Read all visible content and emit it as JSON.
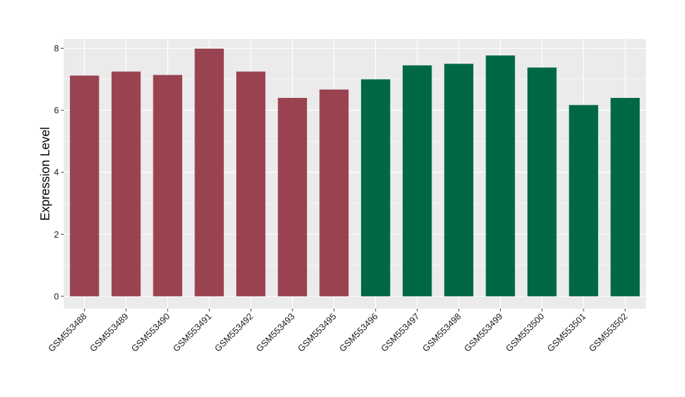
{
  "chart_data": {
    "type": "bar",
    "title": "",
    "xlabel": "",
    "ylabel": "Expression Level",
    "categories": [
      "GSM553488",
      "GSM553489",
      "GSM553490",
      "GSM553491",
      "GSM553492",
      "GSM553493",
      "GSM553495",
      "GSM553496",
      "GSM553497",
      "GSM553498",
      "GSM553499",
      "GSM553500",
      "GSM553501",
      "GSM553502"
    ],
    "values": [
      7.12,
      7.25,
      7.14,
      7.99,
      7.25,
      6.4,
      6.67,
      7.0,
      7.45,
      7.5,
      7.77,
      7.38,
      6.17,
      6.4
    ],
    "groups": [
      0,
      0,
      0,
      0,
      0,
      0,
      0,
      1,
      1,
      1,
      1,
      1,
      1,
      1
    ],
    "group_colors": [
      "#9a4350",
      "#006846"
    ],
    "ylim": [
      -0.4,
      8.3
    ],
    "yticks": [
      0,
      2,
      4,
      6,
      8
    ],
    "grid": true,
    "legend": "none",
    "panel_background": "#ebebeb",
    "grid_color": "#ffffff"
  }
}
